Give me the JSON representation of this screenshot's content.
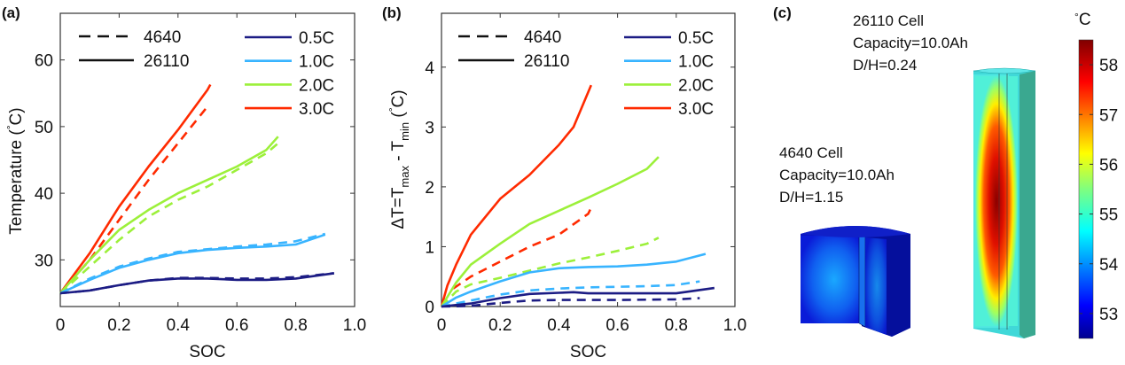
{
  "panels": {
    "a": "(a)",
    "b": "(b)",
    "c": "(c)"
  },
  "colors": {
    "0.5C": "#1c1c84",
    "1.0C": "#38b4ff",
    "2.0C": "#9cf03a",
    "3.0C": "#ff2a00"
  },
  "chart_data": [
    {
      "type": "line",
      "xlabel": "SOC",
      "ylabel": "Temperature (°C)",
      "ylabel_parts": [
        "Temperature (",
        "°",
        "C)"
      ],
      "xlim": [
        0,
        1
      ],
      "ylim": [
        23,
        67
      ],
      "xticks": [
        0,
        0.2,
        0.4,
        0.6,
        0.8,
        1.0
      ],
      "xtick_labels": [
        "0",
        "0.2",
        "0.4",
        "0.6",
        "0.8",
        "1.0"
      ],
      "yticks": [
        30,
        40,
        50,
        60
      ],
      "ytick_labels": [
        "30",
        "40",
        "50",
        "60"
      ],
      "grid": false,
      "legend_style": [
        {
          "label": "4640",
          "dash": true
        },
        {
          "label": "26110",
          "dash": false
        }
      ],
      "legend_rate": [
        "0.5C",
        "1.0C",
        "2.0C",
        "3.0C"
      ],
      "series": [
        {
          "rate": "3.0C",
          "cell": "26110",
          "x": [
            0,
            0.1,
            0.2,
            0.3,
            0.4,
            0.5,
            0.51
          ],
          "y": [
            25,
            31,
            38,
            44,
            49.5,
            55.5,
            56.3
          ]
        },
        {
          "rate": "3.0C",
          "cell": "4640",
          "x": [
            0,
            0.1,
            0.2,
            0.3,
            0.4,
            0.5
          ],
          "y": [
            25,
            30,
            36,
            42,
            47.5,
            53
          ]
        },
        {
          "rate": "2.0C",
          "cell": "26110",
          "x": [
            0,
            0.1,
            0.2,
            0.3,
            0.4,
            0.5,
            0.6,
            0.7,
            0.74
          ],
          "y": [
            25,
            30,
            34.5,
            37.5,
            40,
            42,
            44,
            46.5,
            48.5
          ]
        },
        {
          "rate": "2.0C",
          "cell": "4640",
          "x": [
            0,
            0.1,
            0.2,
            0.3,
            0.4,
            0.5,
            0.6,
            0.7,
            0.74
          ],
          "y": [
            25,
            29,
            33,
            36.5,
            39,
            41,
            43.5,
            46,
            47.5
          ]
        },
        {
          "rate": "1.0C",
          "cell": "26110",
          "x": [
            0,
            0.1,
            0.2,
            0.3,
            0.4,
            0.5,
            0.6,
            0.7,
            0.8,
            0.9
          ],
          "y": [
            25,
            27,
            28.8,
            30,
            31,
            31.5,
            31.8,
            32,
            32.3,
            33.8
          ]
        },
        {
          "rate": "1.0C",
          "cell": "4640",
          "x": [
            0,
            0.1,
            0.2,
            0.3,
            0.4,
            0.5,
            0.6,
            0.7,
            0.8,
            0.9
          ],
          "y": [
            25,
            27.2,
            29,
            30.2,
            31.2,
            31.6,
            32,
            32.3,
            32.8,
            33.9
          ]
        },
        {
          "rate": "0.5C",
          "cell": "26110",
          "x": [
            0,
            0.1,
            0.2,
            0.3,
            0.4,
            0.5,
            0.6,
            0.7,
            0.8,
            0.93
          ],
          "y": [
            25,
            25.4,
            26.2,
            26.9,
            27.2,
            27.2,
            27,
            27,
            27.2,
            28
          ]
        },
        {
          "rate": "0.5C",
          "cell": "4640",
          "x": [
            0,
            0.1,
            0.2,
            0.3,
            0.4,
            0.5,
            0.6,
            0.7,
            0.8,
            0.93
          ],
          "y": [
            25,
            25.4,
            26.2,
            26.9,
            27.3,
            27.3,
            27.2,
            27.2,
            27.4,
            28
          ]
        }
      ]
    },
    {
      "type": "line",
      "xlabel": "SOC",
      "ylabel": "ΔT=Tmax - Tmin (°C)",
      "ylabel_parts": [
        "ΔT=T",
        "max",
        " - T",
        "min",
        " (",
        "°",
        "C)"
      ],
      "xlim": [
        0,
        1
      ],
      "ylim": [
        0,
        4.9
      ],
      "xticks": [
        0,
        0.2,
        0.4,
        0.6,
        0.8,
        1.0
      ],
      "xtick_labels": [
        "0",
        "0.2",
        "0.4",
        "0.6",
        "0.8",
        "1.0"
      ],
      "yticks": [
        0,
        1,
        2,
        3,
        4
      ],
      "ytick_labels": [
        "0",
        "1",
        "2",
        "3",
        "4"
      ],
      "grid": false,
      "legend_style": [
        {
          "label": "4640",
          "dash": true
        },
        {
          "label": "26110",
          "dash": false
        }
      ],
      "legend_rate": [
        "0.5C",
        "1.0C",
        "2.0C",
        "3.0C"
      ],
      "series": [
        {
          "rate": "3.0C",
          "cell": "26110",
          "x": [
            0,
            0.02,
            0.05,
            0.1,
            0.2,
            0.3,
            0.4,
            0.45,
            0.51
          ],
          "y": [
            0,
            0.35,
            0.7,
            1.2,
            1.8,
            2.2,
            2.7,
            3.0,
            3.7
          ]
        },
        {
          "rate": "3.0C",
          "cell": "4640",
          "x": [
            0.04,
            0.1,
            0.2,
            0.3,
            0.4,
            0.5,
            0.51
          ],
          "y": [
            0.3,
            0.5,
            0.75,
            1.0,
            1.2,
            1.55,
            1.65
          ]
        },
        {
          "rate": "2.0C",
          "cell": "26110",
          "x": [
            0,
            0.05,
            0.1,
            0.2,
            0.3,
            0.4,
            0.5,
            0.6,
            0.7,
            0.74
          ],
          "y": [
            0,
            0.4,
            0.7,
            1.05,
            1.38,
            1.6,
            1.82,
            2.05,
            2.3,
            2.5
          ]
        },
        {
          "rate": "2.0C",
          "cell": "4640",
          "x": [
            0,
            0.05,
            0.1,
            0.2,
            0.3,
            0.4,
            0.5,
            0.6,
            0.7,
            0.74
          ],
          "y": [
            0,
            0.25,
            0.37,
            0.48,
            0.6,
            0.72,
            0.82,
            0.93,
            1.05,
            1.15
          ]
        },
        {
          "rate": "1.0C",
          "cell": "26110",
          "x": [
            0,
            0.05,
            0.1,
            0.2,
            0.3,
            0.4,
            0.5,
            0.6,
            0.7,
            0.8,
            0.9
          ],
          "y": [
            0,
            0.15,
            0.25,
            0.42,
            0.57,
            0.64,
            0.66,
            0.67,
            0.7,
            0.75,
            0.88
          ]
        },
        {
          "rate": "1.0C",
          "cell": "4640",
          "x": [
            0,
            0.1,
            0.2,
            0.3,
            0.4,
            0.5,
            0.6,
            0.7,
            0.8,
            0.88
          ],
          "y": [
            0,
            0.1,
            0.2,
            0.27,
            0.3,
            0.32,
            0.33,
            0.34,
            0.36,
            0.42
          ]
        },
        {
          "rate": "0.5C",
          "cell": "26110",
          "x": [
            0,
            0.1,
            0.2,
            0.3,
            0.4,
            0.45,
            0.5,
            0.6,
            0.7,
            0.8,
            0.93
          ],
          "y": [
            0,
            0.05,
            0.14,
            0.21,
            0.23,
            0.24,
            0.22,
            0.22,
            0.22,
            0.22,
            0.31
          ]
        },
        {
          "rate": "0.5C",
          "cell": "4640",
          "x": [
            0,
            0.1,
            0.2,
            0.3,
            0.4,
            0.6,
            0.8,
            0.88
          ],
          "y": [
            0,
            0.01,
            0.06,
            0.1,
            0.11,
            0.11,
            0.12,
            0.14
          ]
        }
      ]
    }
  ],
  "simulation": {
    "cell_26110": {
      "name": "26110 Cell",
      "capacity": "Capacity=10.0Ah",
      "ratio": "D/H=0.24"
    },
    "cell_4640": {
      "name": "4640 Cell",
      "capacity": "Capacity=10.0Ah",
      "ratio": "D/H=1.15"
    },
    "colorbar": {
      "unit_parts": [
        "°",
        "C"
      ],
      "range": [
        52.5,
        58.5
      ],
      "colormap": "jet",
      "ticks": [
        53,
        54,
        55,
        56,
        57,
        58
      ],
      "tick_labels": [
        "53",
        "54",
        "55",
        "56",
        "57",
        "58"
      ]
    }
  }
}
